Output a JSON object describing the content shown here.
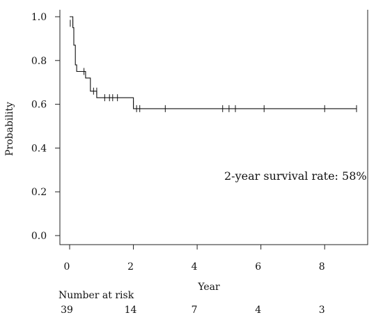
{
  "chart_data": {
    "type": "line",
    "subtype": "kaplan-meier",
    "title": "",
    "xlabel": "Year",
    "ylabel": "Probability",
    "xlim": [
      0,
      9
    ],
    "ylim": [
      0,
      1
    ],
    "xticks": [
      0,
      2,
      4,
      6,
      8
    ],
    "xtick_labels": [
      "0",
      "2",
      "4",
      "6",
      "8"
    ],
    "yticks": [
      0,
      0.2,
      0.4,
      0.6,
      0.8,
      1.0
    ],
    "ytick_labels": [
      "0.0",
      "0.2",
      "0.4",
      "0.6",
      "0.8",
      "1.0"
    ],
    "grid": false,
    "series": [
      {
        "x": [
          0,
          0.1,
          0.1,
          0.13,
          0.13,
          0.18,
          0.18,
          0.22,
          0.22,
          0.5,
          0.5,
          0.65,
          0.65,
          0.85,
          0.85,
          2.0,
          2.0,
          9.0
        ],
        "y": [
          1.0,
          1.0,
          0.95,
          0.95,
          0.87,
          0.87,
          0.78,
          0.78,
          0.75,
          0.75,
          0.72,
          0.72,
          0.66,
          0.66,
          0.63,
          0.63,
          0.58,
          0.58
        ],
        "color": "#111111"
      }
    ],
    "censor_marks": [
      {
        "x": 0.02,
        "y": 0.97
      },
      {
        "x": 0.1,
        "y": 0.97
      },
      {
        "x": 0.45,
        "y": 0.75
      },
      {
        "x": 0.75,
        "y": 0.66
      },
      {
        "x": 0.85,
        "y": 0.66
      },
      {
        "x": 1.1,
        "y": 0.63
      },
      {
        "x": 1.25,
        "y": 0.63
      },
      {
        "x": 1.35,
        "y": 0.63
      },
      {
        "x": 1.5,
        "y": 0.63
      },
      {
        "x": 2.0,
        "y": 0.6
      },
      {
        "x": 2.1,
        "y": 0.58
      },
      {
        "x": 2.2,
        "y": 0.58
      },
      {
        "x": 3.0,
        "y": 0.58
      },
      {
        "x": 4.8,
        "y": 0.58
      },
      {
        "x": 5.0,
        "y": 0.58
      },
      {
        "x": 5.2,
        "y": 0.58
      },
      {
        "x": 6.1,
        "y": 0.58
      },
      {
        "x": 8.0,
        "y": 0.58
      },
      {
        "x": 9.0,
        "y": 0.58
      }
    ],
    "annotation": "2-year survival rate: 58%",
    "risk_table": {
      "title": "Number at risk",
      "times": [
        0,
        2,
        4,
        6,
        8
      ],
      "values": [
        "39",
        "14",
        "7",
        "4",
        "3"
      ]
    }
  }
}
